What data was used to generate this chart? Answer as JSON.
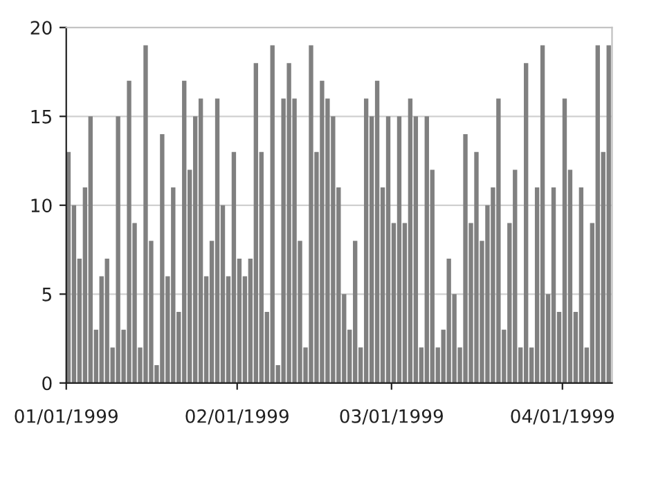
{
  "chart_data": {
    "type": "bar",
    "color": "#808080",
    "x": [
      "1999-01-01",
      "1999-01-02",
      "1999-01-03",
      "1999-01-04",
      "1999-01-05",
      "1999-01-06",
      "1999-01-07",
      "1999-01-08",
      "1999-01-09",
      "1999-01-10",
      "1999-01-11",
      "1999-01-12",
      "1999-01-13",
      "1999-01-14",
      "1999-01-15",
      "1999-01-16",
      "1999-01-17",
      "1999-01-18",
      "1999-01-19",
      "1999-01-20",
      "1999-01-21",
      "1999-01-22",
      "1999-01-23",
      "1999-01-24",
      "1999-01-25",
      "1999-01-26",
      "1999-01-27",
      "1999-01-28",
      "1999-01-29",
      "1999-01-30",
      "1999-01-31",
      "1999-02-01",
      "1999-02-02",
      "1999-02-03",
      "1999-02-04",
      "1999-02-05",
      "1999-02-06",
      "1999-02-07",
      "1999-02-08",
      "1999-02-09",
      "1999-02-10",
      "1999-02-11",
      "1999-02-12",
      "1999-02-13",
      "1999-02-14",
      "1999-02-15",
      "1999-02-16",
      "1999-02-17",
      "1999-02-18",
      "1999-02-19",
      "1999-02-20",
      "1999-02-21",
      "1999-02-22",
      "1999-02-23",
      "1999-02-24",
      "1999-02-25",
      "1999-02-26",
      "1999-02-27",
      "1999-02-28",
      "1999-03-01",
      "1999-03-02",
      "1999-03-03",
      "1999-03-04",
      "1999-03-05",
      "1999-03-06",
      "1999-03-07",
      "1999-03-08",
      "1999-03-09",
      "1999-03-10",
      "1999-03-11",
      "1999-03-12",
      "1999-03-13",
      "1999-03-14",
      "1999-03-15",
      "1999-03-16",
      "1999-03-17",
      "1999-03-18",
      "1999-03-19",
      "1999-03-20",
      "1999-03-21",
      "1999-03-22",
      "1999-03-23",
      "1999-03-24",
      "1999-03-25",
      "1999-03-26",
      "1999-03-27",
      "1999-03-28",
      "1999-03-29",
      "1999-03-30",
      "1999-03-31",
      "1999-04-01",
      "1999-04-02",
      "1999-04-03",
      "1999-04-04",
      "1999-04-05",
      "1999-04-06",
      "1999-04-07",
      "1999-04-08",
      "1999-04-09"
    ],
    "values": [
      13,
      10,
      7,
      11,
      15,
      3,
      6,
      7,
      2,
      15,
      3,
      17,
      9,
      2,
      19,
      8,
      1,
      14,
      6,
      11,
      4,
      17,
      12,
      15,
      16,
      6,
      8,
      16,
      10,
      6,
      13,
      7,
      6,
      7,
      18,
      13,
      4,
      19,
      1,
      16,
      18,
      16,
      8,
      2,
      19,
      13,
      17,
      16,
      15,
      11,
      5,
      3,
      8,
      2,
      16,
      15,
      17,
      11,
      15,
      9,
      15,
      9,
      16,
      15,
      2,
      15,
      12,
      2,
      3,
      7,
      5,
      2,
      14,
      9,
      13,
      8,
      10,
      11,
      16,
      3,
      9,
      12,
      2,
      18,
      2,
      11,
      19,
      5,
      11,
      4,
      16,
      12,
      4,
      11,
      2,
      9,
      19,
      13,
      19
    ],
    "xlim": [
      "1999-01-01",
      "1999-04-10"
    ],
    "xticks": [
      {
        "value": "1999-01-01",
        "label": "01/01/1999"
      },
      {
        "value": "1999-02-01",
        "label": "02/01/1999"
      },
      {
        "value": "1999-03-01",
        "label": "03/01/1999"
      },
      {
        "value": "1999-04-01",
        "label": "04/01/1999"
      }
    ],
    "ylim": [
      0,
      20
    ],
    "yticks": [
      0,
      5,
      10,
      15,
      20
    ],
    "grid": "y"
  }
}
